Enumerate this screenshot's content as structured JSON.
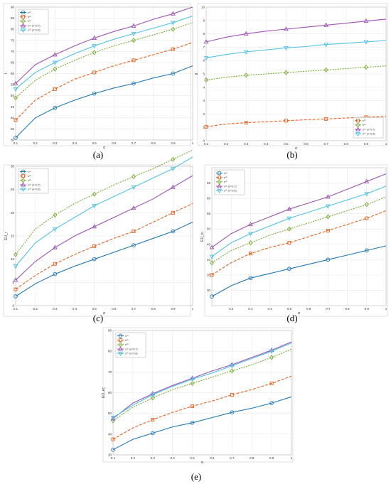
{
  "colors": {
    "s1": "#1f77b4",
    "s2": "#e8601c",
    "s3": "#77ac30",
    "s4": "#9e52b4",
    "s5": "#4fc3e8",
    "grid": "#e6e6e6",
    "axis": "#b8b8b8"
  },
  "chart_data": [
    {
      "panel": "(a)",
      "type": "line",
      "xlabel": "α",
      "ylabel": "I",
      "xlim": [
        0.1,
        1
      ],
      "ylim": [
        30,
        90
      ],
      "xticks": [
        0.1,
        0.2,
        0.3,
        0.4,
        0.5,
        0.6,
        0.7,
        0.8,
        0.9,
        1
      ],
      "yticks": [
        30,
        35,
        40,
        45,
        50,
        55,
        60,
        65,
        70,
        75,
        80,
        85,
        90
      ],
      "x": [
        0.1,
        0.2,
        0.3,
        0.4,
        0.5,
        0.6,
        0.7,
        0.8,
        0.9,
        1.0
      ],
      "legend": "top-left",
      "series": [
        {
          "legend_text": "s⁽¹⁾",
          "marker": "circle",
          "values": [
            31.0,
            40.0,
            44.5,
            48.0,
            51.0,
            53.5,
            55.5,
            58.0,
            60.0,
            63.5
          ]
        },
        {
          "legend_text": "s⁽²⁾",
          "marker": "square",
          "values": [
            39.0,
            48.0,
            53.0,
            57.5,
            60.5,
            63.5,
            66.0,
            68.5,
            71.0,
            74.0
          ]
        },
        {
          "legend_text": "s⁽³⁾",
          "marker": "diamond",
          "values": [
            49.0,
            57.0,
            62.0,
            66.0,
            69.5,
            72.5,
            75.0,
            77.5,
            80.0,
            83.0
          ]
        },
        {
          "legend_text": "s⁽⁴⁾ (n=0.7)",
          "marker": "triangle-up",
          "values": [
            55.5,
            64.0,
            68.5,
            72.5,
            76.0,
            79.0,
            81.5,
            84.5,
            87.0,
            90.0
          ]
        },
        {
          "legend_text": "s⁽⁵⁾ (n=0.8)",
          "marker": "triangle-down",
          "values": [
            53.0,
            60.5,
            65.0,
            69.0,
            72.5,
            75.5,
            78.0,
            80.5,
            83.0,
            86.0
          ]
        }
      ]
    },
    {
      "panel": "(b)",
      "type": "line",
      "xlabel": "α",
      "ylabel": "II",
      "xlim": [
        0.1,
        1
      ],
      "ylim": [
        0,
        10
      ],
      "xticks": [
        0.1,
        0.2,
        0.3,
        0.4,
        0.5,
        0.6,
        0.7,
        0.8,
        0.9,
        1
      ],
      "yticks": [
        0,
        1,
        2,
        3,
        4,
        5,
        6,
        7,
        8,
        9,
        10
      ],
      "x": [
        0.1,
        0.2,
        0.3,
        0.4,
        0.5,
        0.6,
        0.7,
        0.8,
        0.9,
        1.0
      ],
      "legend": "bottom-right",
      "series": [
        {
          "legend_text": "s⁽²⁾",
          "marker": "square",
          "values": [
            1.05,
            1.25,
            1.35,
            1.42,
            1.5,
            1.57,
            1.63,
            1.7,
            1.76,
            1.83
          ]
        },
        {
          "legend_text": "s⁽³⁾",
          "marker": "diamond",
          "values": [
            4.55,
            4.75,
            4.9,
            5.0,
            5.1,
            5.2,
            5.3,
            5.4,
            5.5,
            5.6
          ]
        },
        {
          "legend_text": "s⁽⁴⁾ (n=0.7)",
          "marker": "triangle-up",
          "values": [
            7.4,
            7.75,
            8.0,
            8.2,
            8.35,
            8.5,
            8.65,
            8.8,
            8.95,
            9.1
          ]
        },
        {
          "legend_text": "s⁽⁵⁾ (n=0.8)",
          "marker": "triangle-down",
          "values": [
            6.2,
            6.45,
            6.65,
            6.8,
            6.95,
            7.05,
            7.2,
            7.3,
            7.4,
            7.5
          ]
        }
      ]
    },
    {
      "panel": "(c)",
      "type": "line",
      "xlabel": "α",
      "ylabel": "EU_r",
      "xlim": [
        0.1,
        1
      ],
      "ylim": [
        0,
        30
      ],
      "xticks": [
        0.1,
        0.2,
        0.3,
        0.4,
        0.5,
        0.6,
        0.7,
        0.8,
        0.9,
        1
      ],
      "yticks": [
        0,
        5,
        10,
        15,
        20,
        25,
        30
      ],
      "x": [
        0.1,
        0.2,
        0.3,
        0.4,
        0.5,
        0.6,
        0.7,
        0.8,
        0.9,
        1.0
      ],
      "legend": "top-left",
      "series": [
        {
          "legend_text": "s⁽¹⁾",
          "marker": "circle",
          "values": [
            2.0,
            4.7,
            6.8,
            8.5,
            10.0,
            11.5,
            13.0,
            14.5,
            16.0,
            18.0
          ]
        },
        {
          "legend_text": "s⁽²⁾",
          "marker": "square",
          "values": [
            3.5,
            6.5,
            9.0,
            11.0,
            12.8,
            14.5,
            16.0,
            18.0,
            20.0,
            22.0
          ]
        },
        {
          "legend_text": "s⁽³⁾",
          "marker": "diamond",
          "values": [
            11.0,
            16.5,
            19.5,
            22.0,
            24.0,
            26.0,
            27.8,
            29.5,
            31.5,
            33.5
          ]
        },
        {
          "legend_text": "s⁽⁴⁾ (n=0.7)",
          "marker": "triangle-up",
          "values": [
            5.5,
            9.5,
            12.5,
            15.0,
            17.0,
            19.0,
            21.0,
            23.0,
            25.5,
            28.0
          ]
        },
        {
          "legend_text": "s⁽⁵⁾ (n=0.8)",
          "marker": "triangle-down",
          "values": [
            8.5,
            13.5,
            16.5,
            19.0,
            21.5,
            23.5,
            25.5,
            27.5,
            29.5,
            32.0
          ]
        }
      ]
    },
    {
      "panel": "(d)",
      "type": "line",
      "xlabel": "α",
      "ylabel": "EU_in",
      "xlim": [
        0.1,
        1
      ],
      "ylim": [
        25,
        70
      ],
      "xticks": [
        0.2,
        0.3,
        0.4,
        0.5,
        0.6,
        0.7,
        0.8,
        0.9,
        1
      ],
      "yticks": [
        30,
        35,
        40,
        45,
        50,
        55,
        60,
        65
      ],
      "x": [
        0.1,
        0.2,
        0.3,
        0.4,
        0.5,
        0.6,
        0.7,
        0.8,
        0.9,
        1.0
      ],
      "legend": "top-left",
      "series": [
        {
          "legend_text": "s⁽¹⁾",
          "marker": "circle",
          "values": [
            28.0,
            31.5,
            34.0,
            35.5,
            37.0,
            38.5,
            40.0,
            41.5,
            43.0,
            44.5
          ]
        },
        {
          "legend_text": "s⁽²⁾",
          "marker": "square",
          "values": [
            35.0,
            39.0,
            42.0,
            44.0,
            45.5,
            47.5,
            49.5,
            51.5,
            53.5,
            56.0
          ]
        },
        {
          "legend_text": "s⁽³⁾",
          "marker": "diamond",
          "values": [
            39.0,
            43.0,
            45.5,
            48.0,
            50.0,
            52.0,
            54.0,
            56.0,
            58.0,
            60.5
          ]
        },
        {
          "legend_text": "s⁽⁴⁾ (n=0.7)",
          "marker": "triangle-up",
          "values": [
            44.0,
            48.5,
            51.5,
            54.0,
            56.5,
            58.5,
            60.5,
            63.0,
            65.5,
            68.0
          ]
        },
        {
          "legend_text": "s⁽⁵⁾ (n=0.8)",
          "marker": "triangle-down",
          "values": [
            41.0,
            45.5,
            48.5,
            51.0,
            53.5,
            55.5,
            57.5,
            59.5,
            61.5,
            64.0
          ]
        }
      ]
    },
    {
      "panel": "(e)",
      "type": "line",
      "xlabel": "α",
      "ylabel": "EU_ec",
      "xlim": [
        0.1,
        1
      ],
      "ylim": [
        30,
        90
      ],
      "xticks": [
        0.1,
        0.2,
        0.3,
        0.4,
        0.5,
        0.6,
        0.7,
        0.8,
        0.9,
        1
      ],
      "yticks": [
        30,
        40,
        50,
        60,
        70,
        80,
        90
      ],
      "x": [
        0.1,
        0.2,
        0.3,
        0.4,
        0.5,
        0.6,
        0.7,
        0.8,
        0.9,
        1.0
      ],
      "legend": "top-left",
      "series": [
        {
          "legend_text": "s⁽¹⁾",
          "marker": "circle",
          "values": [
            32.5,
            37.5,
            40.5,
            43.5,
            45.5,
            48.0,
            50.5,
            52.5,
            55.0,
            58.0
          ]
        },
        {
          "legend_text": "s⁽²⁾",
          "marker": "square",
          "values": [
            37.5,
            43.0,
            47.0,
            50.5,
            53.5,
            56.0,
            59.0,
            61.5,
            64.5,
            68.0
          ]
        },
        {
          "legend_text": "s⁽³⁾",
          "marker": "diamond",
          "values": [
            46.5,
            53.0,
            57.5,
            61.5,
            64.5,
            67.5,
            70.5,
            73.5,
            77.0,
            81.0
          ]
        },
        {
          "legend_text": "s⁽⁴⁾ (n=0.7)",
          "marker": "triangle-up",
          "values": [
            47.5,
            55.0,
            59.5,
            63.5,
            67.0,
            70.5,
            73.5,
            77.0,
            80.5,
            84.5
          ]
        },
        {
          "legend_text": "s⁽⁵⁾ (n=0.8)",
          "marker": "triangle-down",
          "values": [
            48.0,
            54.0,
            59.0,
            63.0,
            66.5,
            69.5,
            73.0,
            76.5,
            80.0,
            84.0
          ]
        }
      ]
    }
  ]
}
